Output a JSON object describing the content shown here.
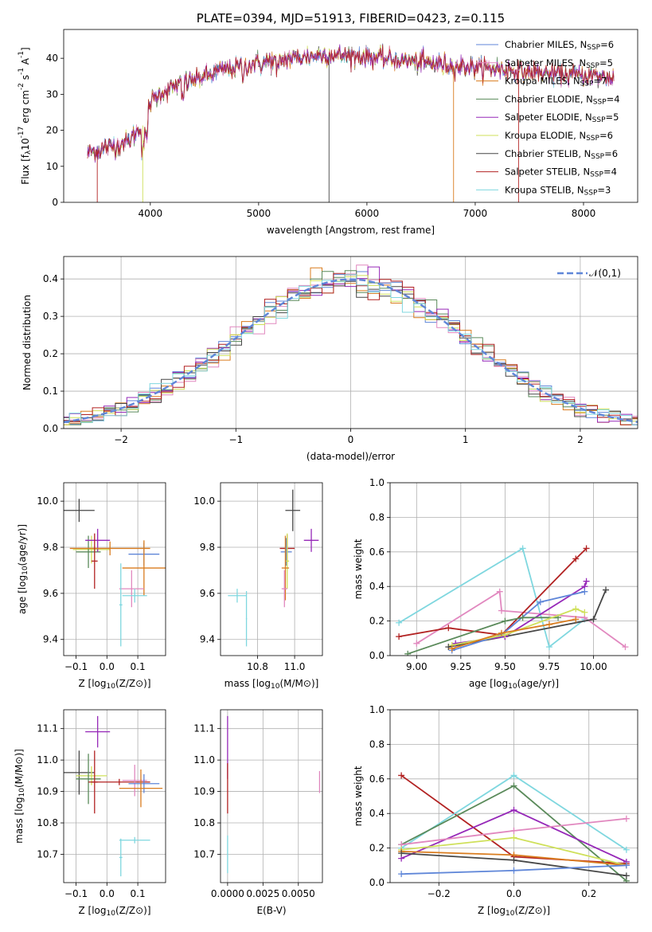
{
  "chart_data": [
    {
      "id": "spectrum",
      "type": "line",
      "title": "PLATE=0394, MJD=51913, FIBERID=0423, z=0.115",
      "xlabel": "wavelength [Angstrom, rest frame]",
      "ylabel": "Flux [f_λ10^-17 erg cm^-2 s^-1 A^-1]",
      "xlim": [
        3200,
        8500
      ],
      "ylim": [
        0,
        48
      ],
      "xticks": [
        4000,
        5000,
        6000,
        7000,
        8000
      ],
      "yticks": [
        0,
        10,
        20,
        30,
        40
      ],
      "grid": false,
      "legend_position": "top-right",
      "continuum": {
        "x": [
          3420,
          3600,
          3800,
          3950,
          4000,
          4100,
          4300,
          4500,
          4700,
          5000,
          5300,
          5600,
          6000,
          6300,
          6600,
          7000,
          7400,
          7800,
          8100,
          8280
        ],
        "y": [
          14,
          15,
          17,
          22,
          28,
          30.5,
          33,
          35,
          37,
          38.5,
          40,
          41,
          40.5,
          39.5,
          38.5,
          37.5,
          36.5,
          35.5,
          35,
          34.5
        ]
      },
      "series": [
        {
          "name": "Chabrier MILES, N_SSP=6",
          "color": "#5f86d8"
        },
        {
          "name": "Salpeter MILES, N_SSP=5",
          "color": "#e188bf"
        },
        {
          "name": "Kroupa MILES, N_SSP=7",
          "color": "#d97c1f"
        },
        {
          "name": "Chabrier ELODIE, N_SSP=4",
          "color": "#5a8a5a"
        },
        {
          "name": "Salpeter ELODIE, N_SSP=5",
          "color": "#9628b8"
        },
        {
          "name": "Kroupa ELODIE, N_SSP=6",
          "color": "#cfe05a"
        },
        {
          "name": "Chabrier STELIB, N_SSP=6",
          "color": "#474747"
        },
        {
          "name": "Salpeter STELIB, N_SSP=4",
          "color": "#b22222"
        },
        {
          "name": "Kroupa STELIB, N_SSP=3",
          "color": "#7fd7df"
        }
      ]
    },
    {
      "id": "residuals",
      "type": "histogram",
      "xlabel": "(data-model)/error",
      "ylabel": "Normed distribution",
      "xlim": [
        -2.5,
        2.5
      ],
      "ylim": [
        0,
        0.46
      ],
      "xticks": [
        -2,
        -1,
        0,
        1,
        2
      ],
      "yticks": [
        0.0,
        0.1,
        0.2,
        0.3,
        0.4
      ],
      "grid": true,
      "bin_width": 0.1,
      "gaussian": {
        "label": "𝒩(0,1)",
        "color": "#5f86d8"
      }
    },
    {
      "id": "age_vs_Z",
      "type": "errorbar",
      "xlabel": "Z [log10(Z/Z⊙)]",
      "ylabel": "age  [log10(age/yr)]",
      "xlim": [
        -0.14,
        0.19
      ],
      "ylim": [
        9.33,
        10.08
      ],
      "xticks": [
        -0.1,
        0.0,
        0.1
      ],
      "yticks": [
        9.4,
        9.6,
        9.8,
        10.0
      ],
      "grid": true,
      "points": [
        {
          "x": -0.09,
          "y": 9.96,
          "xerr": 0.05,
          "yerr": 0.05,
          "color": "#474747"
        },
        {
          "x": -0.05,
          "y": 9.79,
          "xerr": 0.06,
          "yerr": 0.06,
          "color": "#cfe05a"
        },
        {
          "x": -0.06,
          "y": 9.78,
          "xerr": 0.04,
          "yerr": 0.07,
          "color": "#5a8a5a"
        },
        {
          "x": -0.03,
          "y": 9.83,
          "xerr": 0.04,
          "yerr": 0.05,
          "color": "#9628b8"
        },
        {
          "x": 0.01,
          "y": 9.795,
          "xerr": 0.13,
          "yerr": 0.03,
          "color": "#d97c1f"
        },
        {
          "x": -0.04,
          "y": 9.74,
          "xerr": 0.01,
          "yerr": 0.12,
          "color": "#b22222"
        },
        {
          "x": 0.12,
          "y": 9.77,
          "xerr": 0.05,
          "yerr": 0.05,
          "color": "#5f86d8"
        },
        {
          "x": 0.12,
          "y": 9.71,
          "xerr": 0.07,
          "yerr": 0.12,
          "color": "#d97c1f"
        },
        {
          "x": 0.08,
          "y": 9.62,
          "xerr": 0.04,
          "yerr": 0.08,
          "color": "#e188bf"
        },
        {
          "x": 0.09,
          "y": 9.59,
          "xerr": 0.04,
          "yerr": 0.03,
          "color": "#7fd7df"
        },
        {
          "x": 0.045,
          "y": 9.55,
          "xerr": 0.005,
          "yerr": 0.18,
          "color": "#7fd7df"
        }
      ]
    },
    {
      "id": "age_vs_mass",
      "type": "errorbar",
      "xlabel": "mass [log10(M/M⊙)]",
      "ylabel": "",
      "xlim": [
        10.6,
        11.15
      ],
      "ylim": [
        9.33,
        10.08
      ],
      "xticks": [
        10.8,
        11.0
      ],
      "yticks": [
        9.4,
        9.6,
        9.8,
        10.0
      ],
      "grid": true,
      "points": [
        {
          "x": 10.99,
          "y": 9.96,
          "xerr": 0.04,
          "yerr": 0.09,
          "color": "#474747"
        },
        {
          "x": 10.96,
          "y": 9.795,
          "xerr": 0.04,
          "yerr": 0.06,
          "color": "#b22222"
        },
        {
          "x": 10.955,
          "y": 9.78,
          "xerr": 0.03,
          "yerr": 0.06,
          "color": "#5f86d8"
        },
        {
          "x": 10.96,
          "y": 9.74,
          "xerr": 0.01,
          "yerr": 0.12,
          "color": "#cfe05a"
        },
        {
          "x": 10.95,
          "y": 9.71,
          "xerr": 0.02,
          "yerr": 0.14,
          "color": "#d97c1f"
        },
        {
          "x": 10.945,
          "y": 9.62,
          "xerr": 0.015,
          "yerr": 0.08,
          "color": "#e188bf"
        },
        {
          "x": 11.09,
          "y": 9.83,
          "xerr": 0.04,
          "yerr": 0.05,
          "color": "#9628b8"
        },
        {
          "x": 10.69,
          "y": 9.59,
          "xerr": 0.05,
          "yerr": 0.03,
          "color": "#7fd7df"
        },
        {
          "x": 10.74,
          "y": 9.49,
          "xerr": 0.003,
          "yerr": 0.12,
          "color": "#7fd7df"
        }
      ]
    },
    {
      "id": "weight_vs_age",
      "type": "line",
      "xlabel": "age  [log10(age/yr)]",
      "ylabel": "mass weight",
      "xlim": [
        8.85,
        10.25
      ],
      "ylim": [
        0,
        1.0
      ],
      "xticks": [
        9.0,
        9.25,
        9.5,
        9.75,
        10.0
      ],
      "yticks": [
        0.0,
        0.2,
        0.4,
        0.6,
        0.8,
        1.0
      ],
      "grid": true,
      "series": [
        {
          "color": "#7fd7df",
          "x": [
            8.9,
            9.6,
            9.75,
            9.95
          ],
          "y": [
            0.19,
            0.62,
            0.05,
            0.21
          ]
        },
        {
          "color": "#e188bf",
          "x": [
            9.0,
            9.47,
            9.48,
            9.95,
            10.18
          ],
          "y": [
            0.07,
            0.37,
            0.26,
            0.22,
            0.05
          ]
        },
        {
          "color": "#b22222",
          "x": [
            8.9,
            9.18,
            9.48,
            9.9,
            9.96
          ],
          "y": [
            0.11,
            0.16,
            0.12,
            0.56,
            0.62
          ]
        },
        {
          "color": "#474747",
          "x": [
            9.18,
            9.5,
            10.0,
            10.07
          ],
          "y": [
            0.05,
            0.11,
            0.21,
            0.38
          ]
        },
        {
          "color": "#9628b8",
          "x": [
            9.22,
            9.5,
            9.95,
            9.96
          ],
          "y": [
            0.07,
            0.11,
            0.4,
            0.43
          ]
        },
        {
          "color": "#5f86d8",
          "x": [
            9.2,
            9.48,
            9.7,
            9.95
          ],
          "y": [
            0.03,
            0.12,
            0.31,
            0.37
          ]
        },
        {
          "color": "#5a8a5a",
          "x": [
            8.95,
            9.5,
            9.6,
            9.8
          ],
          "y": [
            0.01,
            0.2,
            0.22,
            0.22
          ]
        },
        {
          "color": "#cfe05a",
          "x": [
            9.2,
            9.5,
            9.9,
            9.95
          ],
          "y": [
            0.06,
            0.12,
            0.27,
            0.25
          ]
        },
        {
          "color": "#d97c1f",
          "x": [
            9.2,
            9.48,
            9.75,
            9.9
          ],
          "y": [
            0.04,
            0.13,
            0.18,
            0.21
          ]
        }
      ]
    },
    {
      "id": "mass_vs_Z",
      "type": "errorbar",
      "xlabel": "Z [log10(Z/Z⊙)]",
      "ylabel": "mass [log10(M/M⊙)]",
      "xlim": [
        -0.14,
        0.19
      ],
      "ylim": [
        10.61,
        11.16
      ],
      "xticks": [
        -0.1,
        0.0,
        0.1
      ],
      "yticks": [
        10.7,
        10.8,
        10.9,
        11.0,
        11.1
      ],
      "grid": true,
      "points": [
        {
          "x": -0.03,
          "y": 11.09,
          "xerr": 0.04,
          "yerr": 0.05,
          "color": "#9628b8"
        },
        {
          "x": -0.09,
          "y": 10.96,
          "xerr": 0.05,
          "yerr": 0.07,
          "color": "#474747"
        },
        {
          "x": -0.05,
          "y": 10.95,
          "xerr": 0.05,
          "yerr": 0.03,
          "color": "#cfe05a"
        },
        {
          "x": -0.06,
          "y": 10.94,
          "xerr": 0.04,
          "yerr": 0.08,
          "color": "#5a8a5a"
        },
        {
          "x": -0.04,
          "y": 10.93,
          "xerr": 0.01,
          "yerr": 0.1,
          "color": "#b22222"
        },
        {
          "x": 0.04,
          "y": 10.93,
          "xerr": 0.1,
          "yerr": 0.01,
          "color": "#b22222"
        },
        {
          "x": 0.09,
          "y": 10.935,
          "xerr": 0.04,
          "yerr": 0.05,
          "color": "#e188bf"
        },
        {
          "x": 0.12,
          "y": 10.925,
          "xerr": 0.05,
          "yerr": 0.03,
          "color": "#5f86d8"
        },
        {
          "x": 0.11,
          "y": 10.91,
          "xerr": 0.07,
          "yerr": 0.06,
          "color": "#d97c1f"
        },
        {
          "x": 0.09,
          "y": 10.745,
          "xerr": 0.05,
          "yerr": 0.01,
          "color": "#7fd7df"
        },
        {
          "x": 0.045,
          "y": 10.69,
          "xerr": 0.005,
          "yerr": 0.06,
          "color": "#7fd7df"
        }
      ]
    },
    {
      "id": "mass_vs_EBV",
      "type": "errorbar",
      "xlabel": "E(B-V)",
      "ylabel": "",
      "xlim": [
        -0.0005,
        0.0067
      ],
      "ylim": [
        10.61,
        11.16
      ],
      "xticks": [
        0.0,
        0.0025,
        0.005
      ],
      "xtick_labels": [
        "0.0000",
        "0.0025",
        "0.0050"
      ],
      "yticks": [
        10.7,
        10.8,
        10.9,
        11.0,
        11.1
      ],
      "grid": true,
      "points": [
        {
          "x": 0.0,
          "y": 11.04,
          "xerr": 0,
          "yerr": 0.1,
          "color": "#9628b8"
        },
        {
          "x": 0.0,
          "y": 10.91,
          "xerr": 0,
          "yerr": 0.08,
          "color": "#b22222"
        },
        {
          "x": 0.0,
          "y": 10.7,
          "xerr": 0,
          "yerr": 0.06,
          "color": "#7fd7df"
        },
        {
          "x": 0.0065,
          "y": 10.93,
          "xerr": 0,
          "yerr": 0.035,
          "color": "#e188bf"
        }
      ]
    },
    {
      "id": "weight_vs_Z",
      "type": "line",
      "xlabel": "Z [log10(Z/Z⊙)]",
      "ylabel": "mass weight",
      "xlim": [
        -0.33,
        0.33
      ],
      "ylim": [
        0,
        1.0
      ],
      "xticks": [
        -0.2,
        0.0,
        0.2
      ],
      "yticks": [
        0.0,
        0.2,
        0.4,
        0.6,
        0.8,
        1.0
      ],
      "grid": true,
      "series": [
        {
          "color": "#b22222",
          "x": [
            -0.3,
            0.0,
            0.3
          ],
          "y": [
            0.62,
            0.15,
            0.11
          ]
        },
        {
          "color": "#7fd7df",
          "x": [
            -0.3,
            0.0,
            0.3
          ],
          "y": [
            0.2,
            0.62,
            0.19
          ]
        },
        {
          "color": "#5a8a5a",
          "x": [
            -0.3,
            0.0,
            0.3
          ],
          "y": [
            0.22,
            0.56,
            0.01
          ]
        },
        {
          "color": "#9628b8",
          "x": [
            -0.3,
            0.0,
            0.3
          ],
          "y": [
            0.14,
            0.42,
            0.12
          ]
        },
        {
          "color": "#e188bf",
          "x": [
            -0.3,
            0.0,
            0.3
          ],
          "y": [
            0.22,
            0.3,
            0.37
          ]
        },
        {
          "color": "#cfe05a",
          "x": [
            -0.3,
            0.0,
            0.3
          ],
          "y": [
            0.19,
            0.26,
            0.1
          ]
        },
        {
          "color": "#d97c1f",
          "x": [
            -0.3,
            0.0,
            0.3
          ],
          "y": [
            0.18,
            0.16,
            0.1
          ]
        },
        {
          "color": "#474747",
          "x": [
            -0.3,
            0.0,
            0.3
          ],
          "y": [
            0.17,
            0.13,
            0.04
          ]
        },
        {
          "color": "#5f86d8",
          "x": [
            -0.3,
            0.0,
            0.3
          ],
          "y": [
            0.05,
            0.07,
            0.1
          ]
        }
      ]
    }
  ]
}
